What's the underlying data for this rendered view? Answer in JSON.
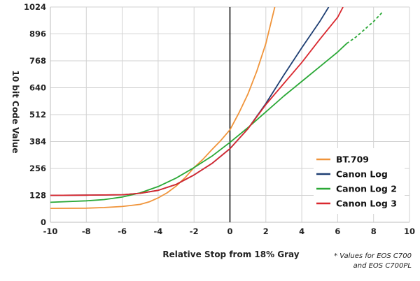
{
  "chart_data": {
    "type": "line",
    "xlabel": "Relative Stop from 18% Gray",
    "ylabel": "10 bit Code Value",
    "xlim": [
      -10,
      10
    ],
    "ylim": [
      0,
      1024
    ],
    "x_ticks": [
      -10,
      -8,
      -6,
      -4,
      -2,
      0,
      2,
      4,
      6,
      8,
      10
    ],
    "x_tick_labels": [
      "-10",
      "-8",
      "-6",
      "-4",
      "-2",
      "0",
      "2",
      "4",
      "6",
      "8",
      "10"
    ],
    "y_ticks": [
      0,
      128,
      256,
      384,
      512,
      640,
      768,
      896,
      1024
    ],
    "y_tick_labels": [
      "0",
      "128",
      "256",
      "384",
      "512",
      "640",
      "768",
      "896",
      "1024"
    ],
    "grid": true,
    "legend_position": "bottom-right",
    "reference_line": {
      "x": 0,
      "color": "#000000"
    },
    "series": [
      {
        "name": "BT.709",
        "color": "#f0943a",
        "x": [
          -10,
          -8,
          -7,
          -6,
          -5,
          -4.5,
          -4,
          -3.5,
          -3,
          -2.5,
          -2,
          -1.5,
          -1,
          -0.5,
          0,
          0.5,
          1,
          1.5,
          2,
          2.5
        ],
        "y": [
          66,
          67,
          70,
          75,
          85,
          97,
          116,
          140,
          172,
          212,
          260,
          300,
          346,
          390,
          440,
          520,
          610,
          720,
          850,
          1024
        ],
        "dashed_from_x": null
      },
      {
        "name": "Canon Log",
        "color": "#1f3f73",
        "x": [
          -10,
          -8,
          -6,
          -5,
          -4,
          -3,
          -2,
          -1,
          0,
          1,
          2,
          3,
          4,
          5,
          5.5
        ],
        "y": [
          128,
          129,
          131,
          138,
          152,
          180,
          225,
          280,
          350,
          445,
          565,
          700,
          830,
          955,
          1024
        ],
        "dashed_from_x": null
      },
      {
        "name": "Canon Log 2",
        "color": "#2aa836",
        "x": [
          -10,
          -8,
          -7,
          -6,
          -5,
          -4,
          -3,
          -2,
          -1,
          0,
          1,
          2,
          3,
          4,
          5,
          6,
          6.5,
          7,
          8,
          8.5
        ],
        "y": [
          95,
          102,
          108,
          120,
          140,
          170,
          210,
          260,
          315,
          380,
          450,
          525,
          600,
          670,
          740,
          810,
          850,
          880,
          955,
          1000
        ],
        "dashed_from_x": 6.5
      },
      {
        "name": "Canon Log 3",
        "color": "#d9282f",
        "x": [
          -10,
          -8,
          -6,
          -5,
          -4,
          -3,
          -2,
          -1,
          0,
          1,
          2,
          3,
          4,
          5,
          6,
          6.3
        ],
        "y": [
          128,
          129,
          131,
          138,
          152,
          180,
          225,
          280,
          350,
          445,
          560,
          660,
          760,
          870,
          975,
          1024
        ],
        "dashed_from_x": null
      }
    ],
    "footnote": [
      "* Values for EOS C700",
      "and EOS C700PL"
    ]
  }
}
